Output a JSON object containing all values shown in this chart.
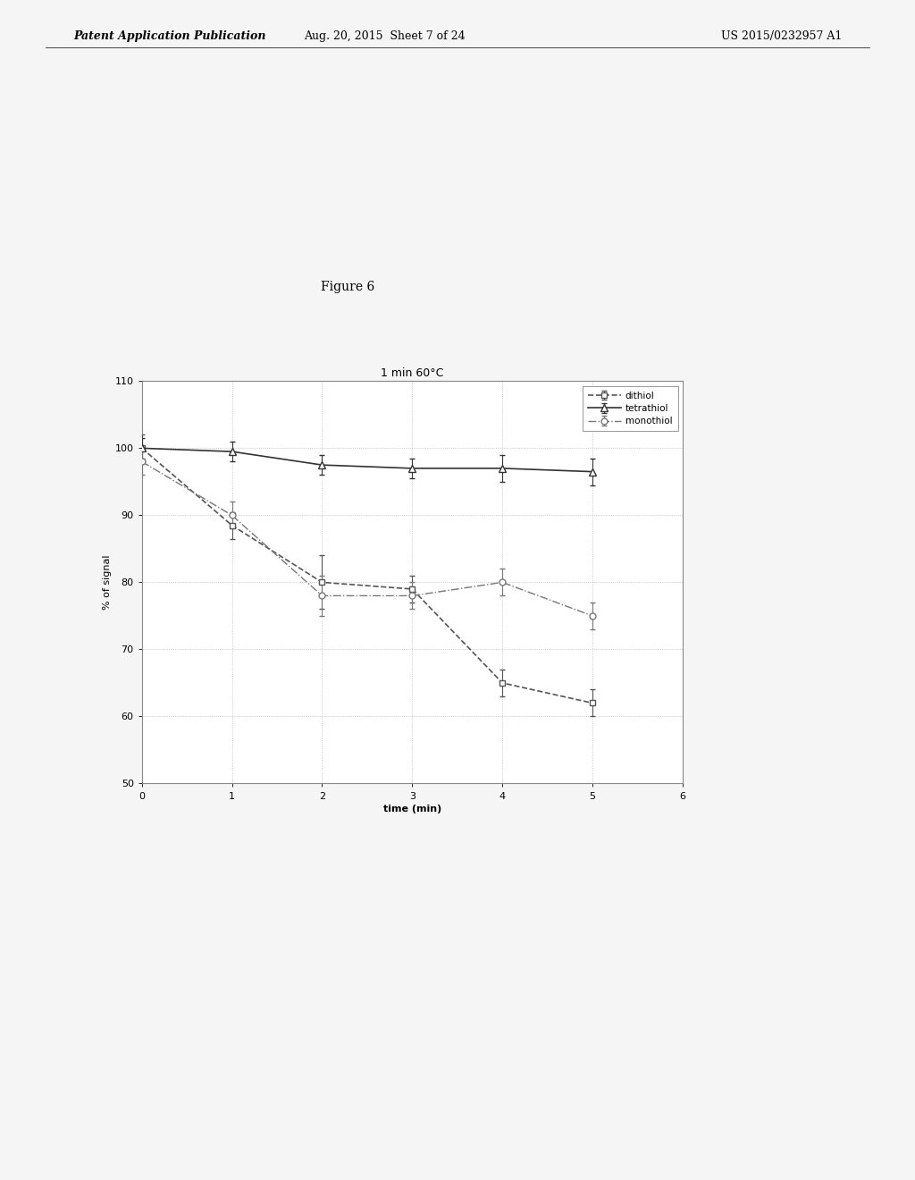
{
  "title": "1 min 60°C",
  "xlabel": "time (min)",
  "ylabel": "% of signal",
  "xlim": [
    0,
    6
  ],
  "ylim": [
    50,
    110
  ],
  "yticks": [
    50,
    60,
    70,
    80,
    90,
    100,
    110
  ],
  "xticks": [
    0,
    1,
    2,
    3,
    4,
    5,
    6
  ],
  "series": [
    {
      "label": "dithiol",
      "x": [
        0,
        1,
        2,
        3,
        4,
        5
      ],
      "y": [
        100,
        88.5,
        80,
        79,
        65,
        62
      ],
      "yerr": [
        2,
        2,
        4,
        2,
        2,
        2
      ],
      "color": "#555555",
      "linestyle": "--",
      "marker": "s",
      "markersize": 5,
      "linewidth": 1.2
    },
    {
      "label": "tetrathiol",
      "x": [
        0,
        1,
        2,
        3,
        4,
        5
      ],
      "y": [
        100,
        99.5,
        97.5,
        97,
        97,
        96.5
      ],
      "yerr": [
        1.5,
        1.5,
        1.5,
        1.5,
        2,
        2
      ],
      "color": "#333333",
      "linestyle": "-",
      "marker": "^",
      "markersize": 6,
      "linewidth": 1.2
    },
    {
      "label": "monothiol",
      "x": [
        0,
        1,
        2,
        3,
        4,
        5
      ],
      "y": [
        98,
        90,
        78,
        78,
        80,
        75
      ],
      "yerr": [
        2,
        2,
        3,
        2,
        2,
        2
      ],
      "color": "#777777",
      "linestyle": "-.",
      "marker": "o",
      "markersize": 5,
      "linewidth": 1.0
    }
  ],
  "figure_caption": "Figure 6",
  "header_left": "Patent Application Publication",
  "header_mid": "Aug. 20, 2015  Sheet 7 of 24",
  "header_right": "US 2015/0232957 A1",
  "background_color": "#f5f5f5",
  "plot_bg_color": "#ffffff",
  "grid_color": "#aaaaaa",
  "title_fontsize": 9,
  "axis_fontsize": 8,
  "tick_fontsize": 8,
  "legend_fontsize": 7.5,
  "caption_fontsize": 10,
  "header_fontsize": 9
}
